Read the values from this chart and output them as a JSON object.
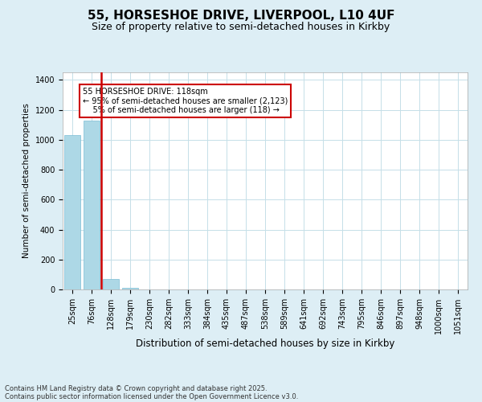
{
  "title1": "55, HORSESHOE DRIVE, LIVERPOOL, L10 4UF",
  "title2": "Size of property relative to semi-detached houses in Kirkby",
  "xlabel": "Distribution of semi-detached houses by size in Kirkby",
  "ylabel": "Number of semi-detached properties",
  "categories": [
    "25sqm",
    "76sqm",
    "128sqm",
    "179sqm",
    "230sqm",
    "282sqm",
    "333sqm",
    "384sqm",
    "435sqm",
    "487sqm",
    "538sqm",
    "589sqm",
    "641sqm",
    "692sqm",
    "743sqm",
    "795sqm",
    "846sqm",
    "897sqm",
    "948sqm",
    "1000sqm",
    "1051sqm"
  ],
  "values": [
    1030,
    1130,
    70,
    10,
    0,
    0,
    0,
    0,
    0,
    0,
    0,
    0,
    0,
    0,
    0,
    0,
    0,
    0,
    0,
    0,
    0
  ],
  "bar_color": "#add8e6",
  "bar_edge_color": "#7bbdd4",
  "vline_color": "#cc0000",
  "vline_bin_index": 2,
  "annotation_line1": "55 HORSESHOE DRIVE: 118sqm",
  "annotation_line2": "← 95% of semi-detached houses are smaller (2,123)",
  "annotation_line3": "5% of semi-detached houses are larger (118) →",
  "annotation_box_color": "#cc0000",
  "ylim": [
    0,
    1450
  ],
  "yticks": [
    0,
    200,
    400,
    600,
    800,
    1000,
    1200,
    1400
  ],
  "footer_line1": "Contains HM Land Registry data © Crown copyright and database right 2025.",
  "footer_line2": "Contains public sector information licensed under the Open Government Licence v3.0.",
  "bg_color": "#ddeef5",
  "plot_bg_color": "#ffffff",
  "grid_color": "#c5dfe8",
  "title1_fontsize": 11,
  "title2_fontsize": 9
}
